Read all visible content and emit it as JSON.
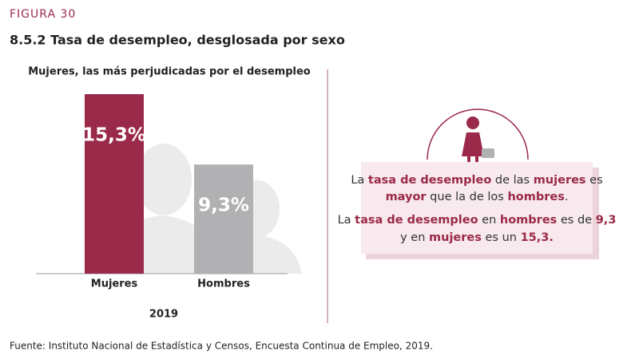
{
  "figure_label": "FIGURA 30",
  "title": "8.5.2 Tasa de desempleo, desglosada por sexo",
  "chart_data": {
    "type": "bar",
    "title": "Mujeres, las más perjudicadas por el desempleo",
    "categories": [
      "Mujeres",
      "Hombres"
    ],
    "values": [
      15.3,
      9.3
    ],
    "value_labels": [
      "15,3%",
      "9,3%"
    ],
    "colors": [
      "#9b2a4a",
      "#b1b1b3"
    ],
    "xlabel": "2019"
  },
  "callout": {
    "paragraphs": [
      [
        {
          "text": "La ",
          "bold": false
        },
        {
          "text": "tasa de desempleo",
          "bold": true
        },
        {
          "text": " de las ",
          "bold": false
        },
        {
          "text": "mujeres",
          "bold": true
        },
        {
          "text": " es ",
          "bold": false
        },
        {
          "text": "mayor",
          "bold": true
        },
        {
          "text": " que la de los ",
          "bold": false
        },
        {
          "text": "hombres",
          "bold": true
        },
        {
          "text": ".",
          "bold": false
        }
      ],
      [
        {
          "text": "La ",
          "bold": false
        },
        {
          "text": "tasa de desempleo",
          "bold": true
        },
        {
          "text": " en ",
          "bold": false
        },
        {
          "text": "hombres",
          "bold": true
        },
        {
          "text": " es de ",
          "bold": false
        },
        {
          "text": "9,3",
          "bold": true
        },
        {
          "text": " y en ",
          "bold": false
        },
        {
          "text": "mujeres",
          "bold": true
        },
        {
          "text": " es un ",
          "bold": false
        },
        {
          "text": "15,3.",
          "bold": true
        }
      ]
    ]
  },
  "source": "Fuente: Instituto Nacional de Estadística y Censos, Encuesta Continua de Empleo, 2019."
}
